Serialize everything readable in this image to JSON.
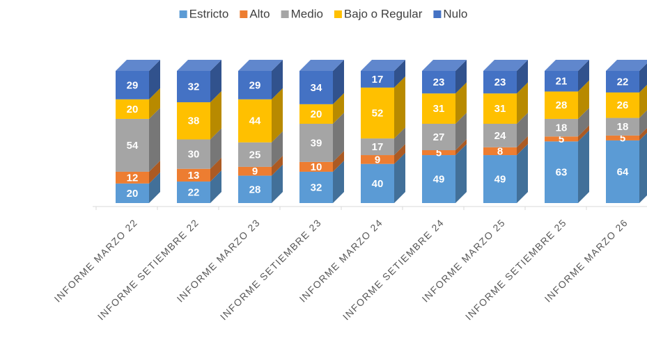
{
  "chart_data": {
    "type": "bar3d_stacked",
    "categories": [
      "INFORME MARZO 22",
      "INFORME SETIEMBRE 22",
      "INFORME MARZO 23",
      "INFORME SETIEMBRE 23",
      "INFORME MARZO 24",
      "INFORME SETIEMBRE 24",
      "INFORME MARZO 25",
      "INFORME SETIEMBRE 25",
      "INFORME MARZO 26"
    ],
    "series": [
      {
        "name": "Estricto",
        "color": "#5b9bd5",
        "values": [
          20,
          22,
          28,
          32,
          40,
          49,
          49,
          63,
          64
        ]
      },
      {
        "name": "Alto",
        "color": "#ed7d31",
        "values": [
          12,
          13,
          9,
          10,
          9,
          5,
          8,
          5,
          5
        ]
      },
      {
        "name": "Medio",
        "color": "#a5a5a5",
        "values": [
          54,
          30,
          25,
          39,
          17,
          27,
          24,
          18,
          18
        ]
      },
      {
        "name": "Bajo o Regular",
        "color": "#ffc000",
        "values": [
          20,
          38,
          44,
          20,
          52,
          31,
          31,
          28,
          26
        ]
      },
      {
        "name": "Nulo",
        "color": "#4472c4",
        "values": [
          29,
          32,
          29,
          34,
          17,
          23,
          23,
          21,
          22
        ]
      }
    ],
    "legend": "top"
  }
}
